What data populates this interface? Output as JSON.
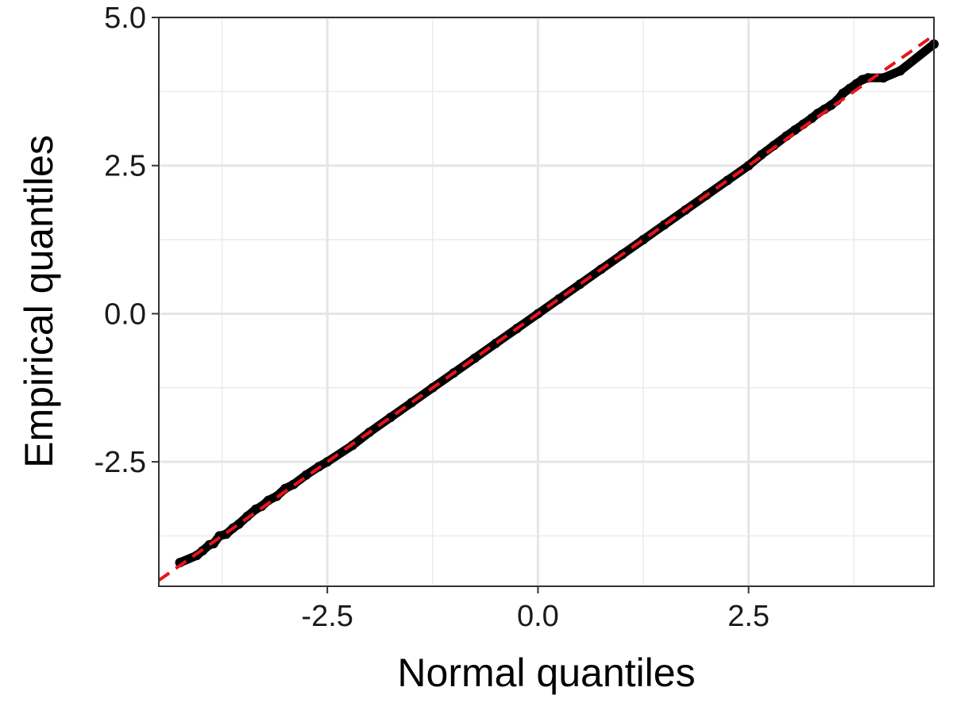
{
  "chart_data": {
    "type": "scatter",
    "title": "",
    "xlabel": "Normal quantiles",
    "ylabel": "Empirical quantiles",
    "xlim": [
      -4.5,
      4.7
    ],
    "ylim": [
      -4.6,
      5.0
    ],
    "x_ticks": [
      -2.5,
      0.0,
      2.5
    ],
    "x_tick_labels": [
      "-2.5",
      "0.0",
      "2.5"
    ],
    "y_ticks": [
      -2.5,
      0.0,
      2.5,
      5.0
    ],
    "y_tick_labels": [
      "-2.5",
      "0.0",
      "2.5",
      "5.0"
    ],
    "grid": true,
    "legend": "none",
    "reference_line": {
      "type": "dashed",
      "color": "#e8141c",
      "slope": 1,
      "intercept": 0
    },
    "point_color": "#000000",
    "series": [
      {
        "values_note": "sample quantiles vs theoretical normal quantiles",
        "x": [
          -4.25,
          -4.05,
          -3.98,
          -3.9,
          -3.85,
          -3.78,
          -3.7,
          -3.62,
          -3.55,
          -3.45,
          -3.35,
          -3.28,
          -3.2,
          -3.1,
          -3.0,
          -2.9,
          -2.75,
          -2.6,
          -2.5,
          -2.2,
          -2.0,
          -1.75,
          -1.5,
          -1.25,
          -1.0,
          -0.75,
          -0.5,
          -0.25,
          0.0,
          0.25,
          0.5,
          0.75,
          1.0,
          1.25,
          1.5,
          1.75,
          2.0,
          2.25,
          2.5,
          2.65,
          2.8,
          2.95,
          3.05,
          3.15,
          3.25,
          3.32,
          3.4,
          3.48,
          3.55,
          3.62,
          3.7,
          3.78,
          3.85,
          3.92,
          4.1,
          4.3,
          4.7
        ],
        "y": [
          -4.2,
          -4.08,
          -4.0,
          -3.9,
          -3.88,
          -3.75,
          -3.72,
          -3.62,
          -3.55,
          -3.42,
          -3.3,
          -3.25,
          -3.15,
          -3.08,
          -2.95,
          -2.88,
          -2.72,
          -2.58,
          -2.5,
          -2.22,
          -2.0,
          -1.75,
          -1.5,
          -1.25,
          -1.0,
          -0.75,
          -0.5,
          -0.25,
          0.0,
          0.25,
          0.5,
          0.75,
          1.0,
          1.25,
          1.5,
          1.75,
          2.0,
          2.25,
          2.5,
          2.68,
          2.84,
          3.0,
          3.1,
          3.2,
          3.3,
          3.38,
          3.45,
          3.52,
          3.6,
          3.72,
          3.8,
          3.88,
          3.95,
          3.98,
          3.98,
          4.1,
          4.55
        ]
      }
    ]
  }
}
